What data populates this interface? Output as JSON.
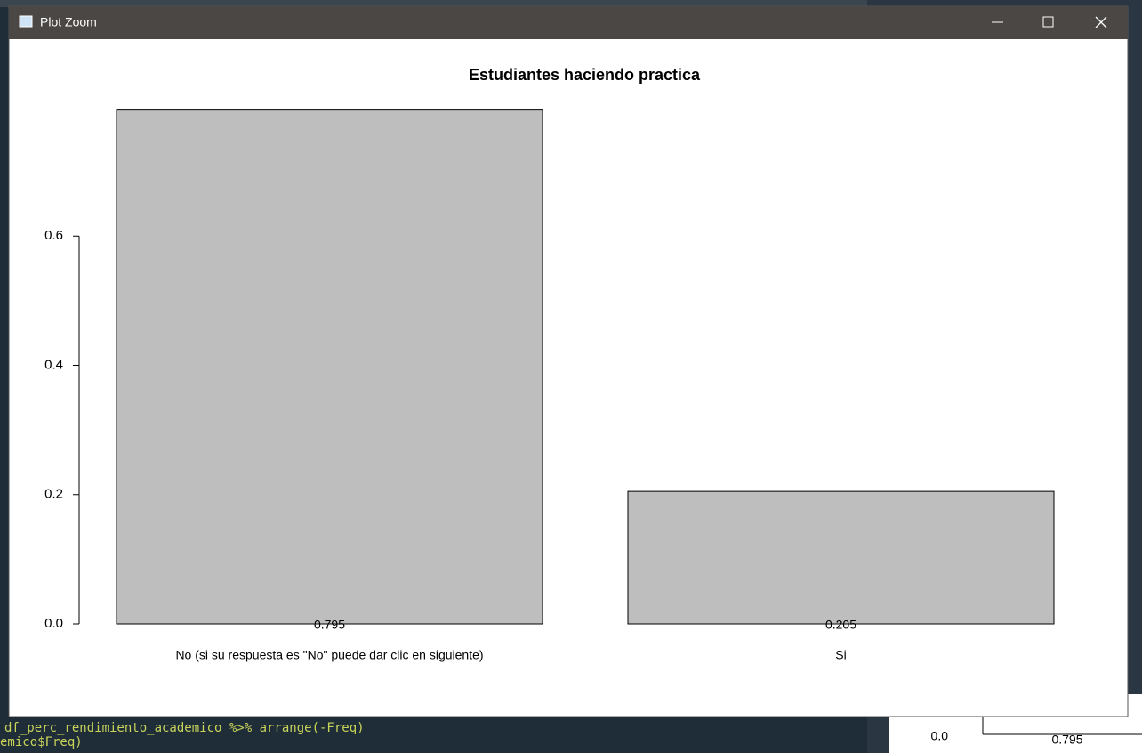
{
  "window": {
    "title": "Plot Zoom"
  },
  "background": {
    "code_lines": [
      "df_perc_rendimiento_academico %>% arrange(-Freq)",
      "emico$Freq)"
    ],
    "plot_labels": [
      "0.0",
      "0.795"
    ]
  },
  "chart_data": {
    "type": "bar",
    "title": "Estudiantes haciendo practica",
    "categories": [
      "No (si su respuesta es \"No\" puede dar clic en siguiente)",
      "Si"
    ],
    "values": [
      0.795,
      0.205
    ],
    "color": "#bebebe",
    "ylim": [
      0,
      0.8
    ],
    "yticks": [
      {
        "value": 0,
        "label": "0.0"
      },
      0.2,
      0.4,
      0.6
    ]
  }
}
